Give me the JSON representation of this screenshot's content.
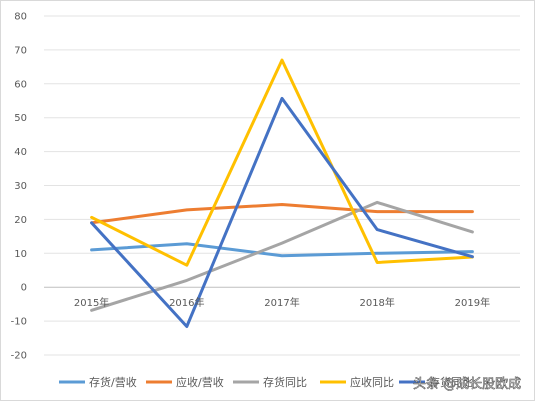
{
  "chart_data": {
    "type": "line",
    "categories": [
      "2015年",
      "2016年",
      "2017年",
      "2018年",
      "2019年"
    ],
    "ylim": [
      -20,
      80
    ],
    "yticks": [
      -20,
      -10,
      0,
      10,
      20,
      30,
      40,
      50,
      60,
      70,
      80
    ],
    "grid": true,
    "legend_position": "bottom",
    "series": [
      {
        "name": "存货/营收",
        "color": "#5b9bd5",
        "values": [
          11,
          12.8,
          9.3,
          10,
          10.5
        ]
      },
      {
        "name": "应收/营收",
        "color": "#ed7d31",
        "values": [
          19,
          22.8,
          24.4,
          22.3,
          22.3
        ]
      },
      {
        "name": "存货同比",
        "color": "#a5a5a5",
        "values": [
          -6.8,
          2,
          13,
          25,
          16.3
        ]
      },
      {
        "name": "应收同比",
        "color": "#ffc000",
        "values": [
          20.6,
          6.5,
          67,
          7.3,
          8.9
        ]
      },
      {
        "name": "存货同比",
        "color": "#4472c4",
        "values": [
          19,
          -11.6,
          55.7,
          17,
          9
        ]
      }
    ]
  },
  "watermark": "头条 @成长股欧成"
}
